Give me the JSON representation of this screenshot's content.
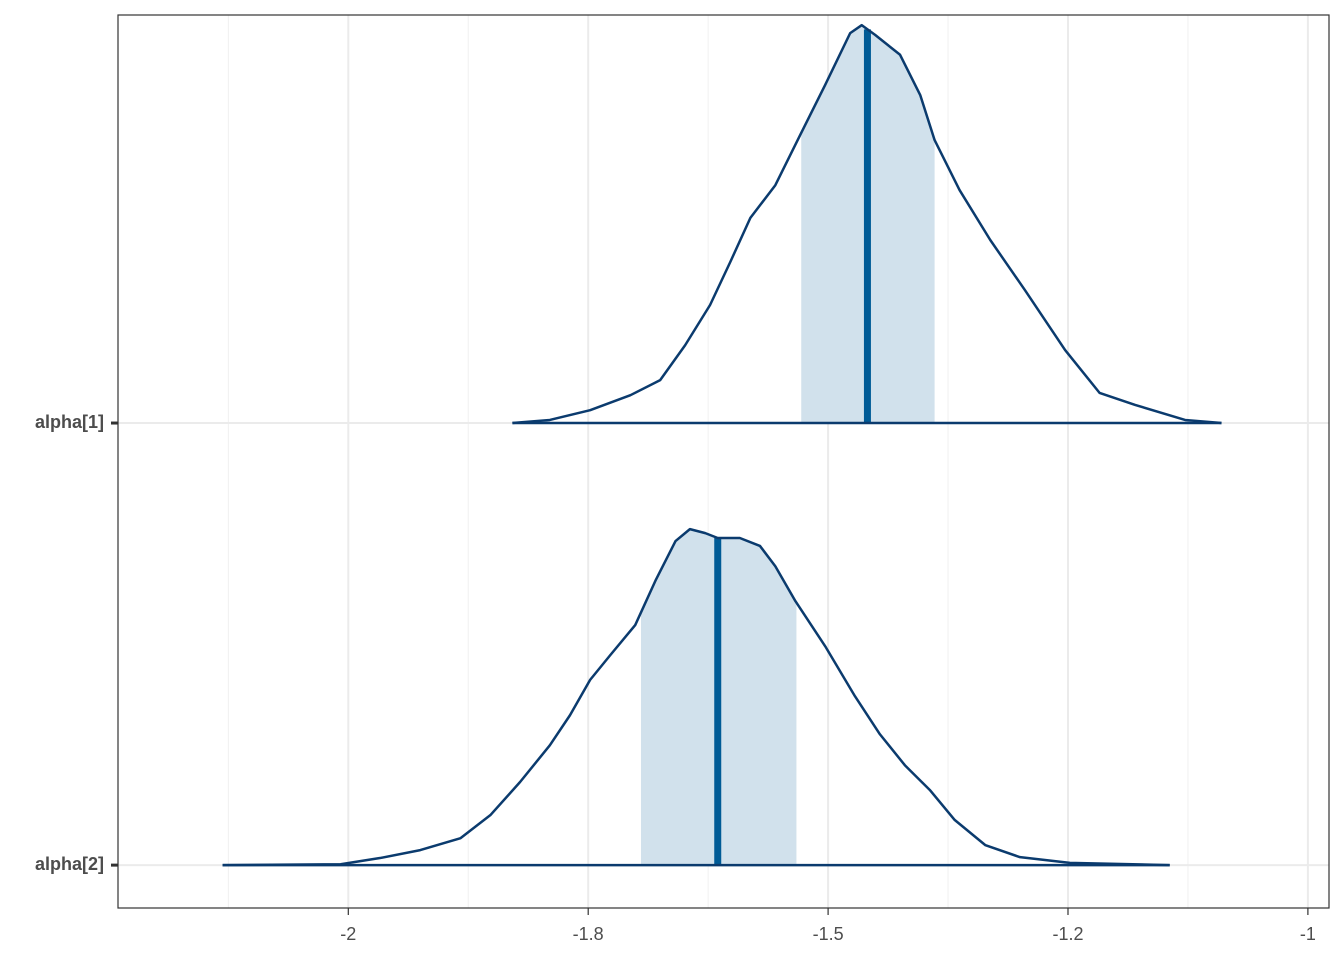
{
  "chart_data": {
    "type": "density_ridges",
    "xlim": [
      -2.24,
      -0.978
    ],
    "xticks": [
      -2.0,
      {
        "value": -1.75,
        "label": "-1.8"
      },
      -1.5,
      {
        "value": -1.25,
        "label": "-1.2"
      },
      -1.0
    ],
    "ylim": [
      0.903,
      2.923
    ],
    "yticks": [
      {
        "value": 2,
        "label": "alpha[1]"
      },
      {
        "value": 1,
        "label": "alpha[2]"
      }
    ],
    "grid": true,
    "line_color": "#0b3b6e",
    "fill_color": "#d1e1ec",
    "median_color": "#005b96",
    "series": [
      {
        "x": [
          -1.829,
          -1.79,
          -1.748,
          -1.706,
          -1.675,
          -1.649,
          -1.623,
          -1.602,
          -1.581,
          -1.555,
          -1.529,
          -1.503,
          -1.477,
          -1.465,
          -1.451,
          -1.425,
          -1.404,
          -1.389,
          -1.363,
          -1.331,
          -1.295,
          -1.253,
          -1.217,
          -1.18,
          -1.128,
          -1.09
        ],
        "density": [
          0,
          0.007,
          0.029,
          0.063,
          0.097,
          0.176,
          0.267,
          0.364,
          0.464,
          0.538,
          0.652,
          0.765,
          0.882,
          0.9,
          0.878,
          0.833,
          0.742,
          0.64,
          0.527,
          0.414,
          0.301,
          0.165,
          0.068,
          0.041,
          0.007,
          0
        ],
        "median": -1.459,
        "interval": [
          -1.528,
          -1.389
        ]
      },
      {
        "x": [
          -2.131,
          -2.008,
          -1.967,
          -1.925,
          -1.883,
          -1.852,
          -1.821,
          -1.79,
          -1.769,
          -1.748,
          -1.727,
          -1.701,
          -1.68,
          -1.659,
          -1.644,
          -1.628,
          -1.615,
          -1.592,
          -1.571,
          -1.555,
          -1.534,
          -1.503,
          -1.472,
          -1.446,
          -1.42,
          -1.394,
          -1.368,
          -1.336,
          -1.3,
          -1.248,
          -1.144
        ],
        "density": [
          0,
          0.002,
          0.016,
          0.034,
          0.061,
          0.113,
          0.188,
          0.271,
          0.339,
          0.419,
          0.475,
          0.543,
          0.643,
          0.733,
          0.76,
          0.751,
          0.74,
          0.74,
          0.722,
          0.676,
          0.597,
          0.495,
          0.382,
          0.296,
          0.226,
          0.17,
          0.102,
          0.045,
          0.018,
          0.005,
          0
        ],
        "median": -1.615,
        "interval": [
          -1.695,
          -1.533
        ]
      }
    ]
  }
}
